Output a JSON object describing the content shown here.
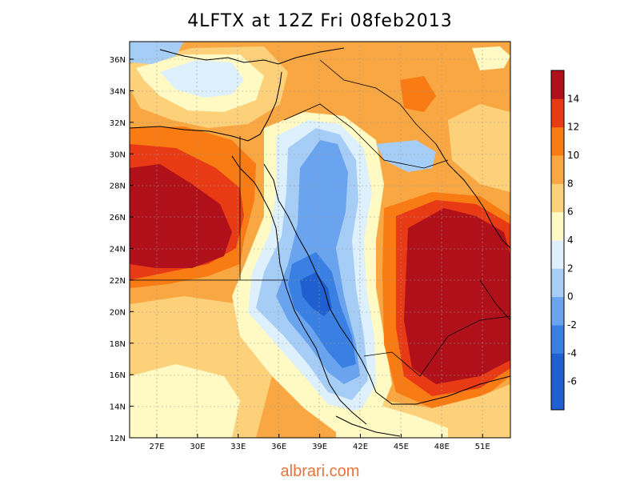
{
  "title": "4LFTX at 12Z Fri 08feb2013",
  "watermark": "albrari.com",
  "lat_ticks": [
    "12N",
    "14N",
    "16N",
    "18N",
    "20N",
    "22N",
    "24N",
    "26N",
    "28N",
    "30N",
    "32N",
    "34N",
    "36N"
  ],
  "lon_ticks": [
    "27E",
    "30E",
    "33E",
    "36E",
    "39E",
    "42E",
    "45E",
    "48E",
    "51E"
  ],
  "colorbar": {
    "labels": [
      "-6",
      "-4",
      "-2",
      "0",
      "2",
      "4",
      "6",
      "8",
      "10",
      "12",
      "14"
    ],
    "colors": [
      "#1f5fcf",
      "#3a80e2",
      "#6aa3ee",
      "#a6cdf5",
      "#ddf0fb",
      "#fffac3",
      "#fdd17a",
      "#f9a742",
      "#f97b14",
      "#e83a14",
      "#b0101a"
    ]
  },
  "chart_data": {
    "type": "heatmap",
    "variable": "4LFTX",
    "lat_range": [
      "12N",
      "37N"
    ],
    "lon_range": [
      "25E",
      "53E"
    ],
    "color_scale": [
      -6,
      -4,
      -2,
      0,
      2,
      4,
      6,
      8,
      10,
      12,
      14
    ]
  }
}
